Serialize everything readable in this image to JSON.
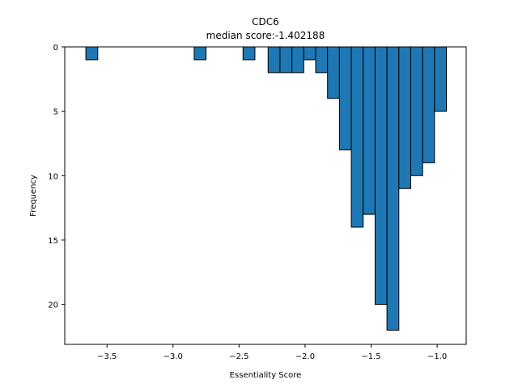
{
  "chart_data": {
    "type": "bar",
    "title": "CDC6",
    "subtitle": "median score:-1.402188",
    "xlabel": "Essentiality Score",
    "ylabel": "Frequency",
    "bin_width": 0.09,
    "bins": [
      {
        "x0": -3.66,
        "count": 1
      },
      {
        "x0": -2.84,
        "count": 1
      },
      {
        "x0": -2.47,
        "count": 1
      },
      {
        "x0": -2.28,
        "count": 2
      },
      {
        "x0": -2.19,
        "count": 2
      },
      {
        "x0": -2.1,
        "count": 2
      },
      {
        "x0": -2.01,
        "count": 1
      },
      {
        "x0": -1.92,
        "count": 2
      },
      {
        "x0": -1.83,
        "count": 4
      },
      {
        "x0": -1.74,
        "count": 8
      },
      {
        "x0": -1.65,
        "count": 14
      },
      {
        "x0": -1.56,
        "count": 13
      },
      {
        "x0": -1.47,
        "count": 20
      },
      {
        "x0": -1.38,
        "count": 22
      },
      {
        "x0": -1.29,
        "count": 11
      },
      {
        "x0": -1.2,
        "count": 10
      },
      {
        "x0": -1.11,
        "count": 9
      },
      {
        "x0": -1.02,
        "count": 5
      }
    ],
    "xlim": [
      -3.82,
      -0.78
    ],
    "ylim": [
      23.1,
      0
    ],
    "y_inverted": true,
    "xticks": [
      -3.5,
      -3.0,
      -2.5,
      -2.0,
      -1.5,
      -1.0
    ],
    "xtick_labels": [
      "−3.5",
      "−3.0",
      "−2.5",
      "−2.0",
      "−1.5",
      "−1.0"
    ],
    "yticks": [
      0,
      5,
      10,
      15,
      20
    ],
    "ytick_labels": [
      "0",
      "5",
      "10",
      "15",
      "20"
    ],
    "bar_color": "#1f77b4",
    "edge_color": "#000000",
    "grid": false,
    "legend": "none"
  }
}
